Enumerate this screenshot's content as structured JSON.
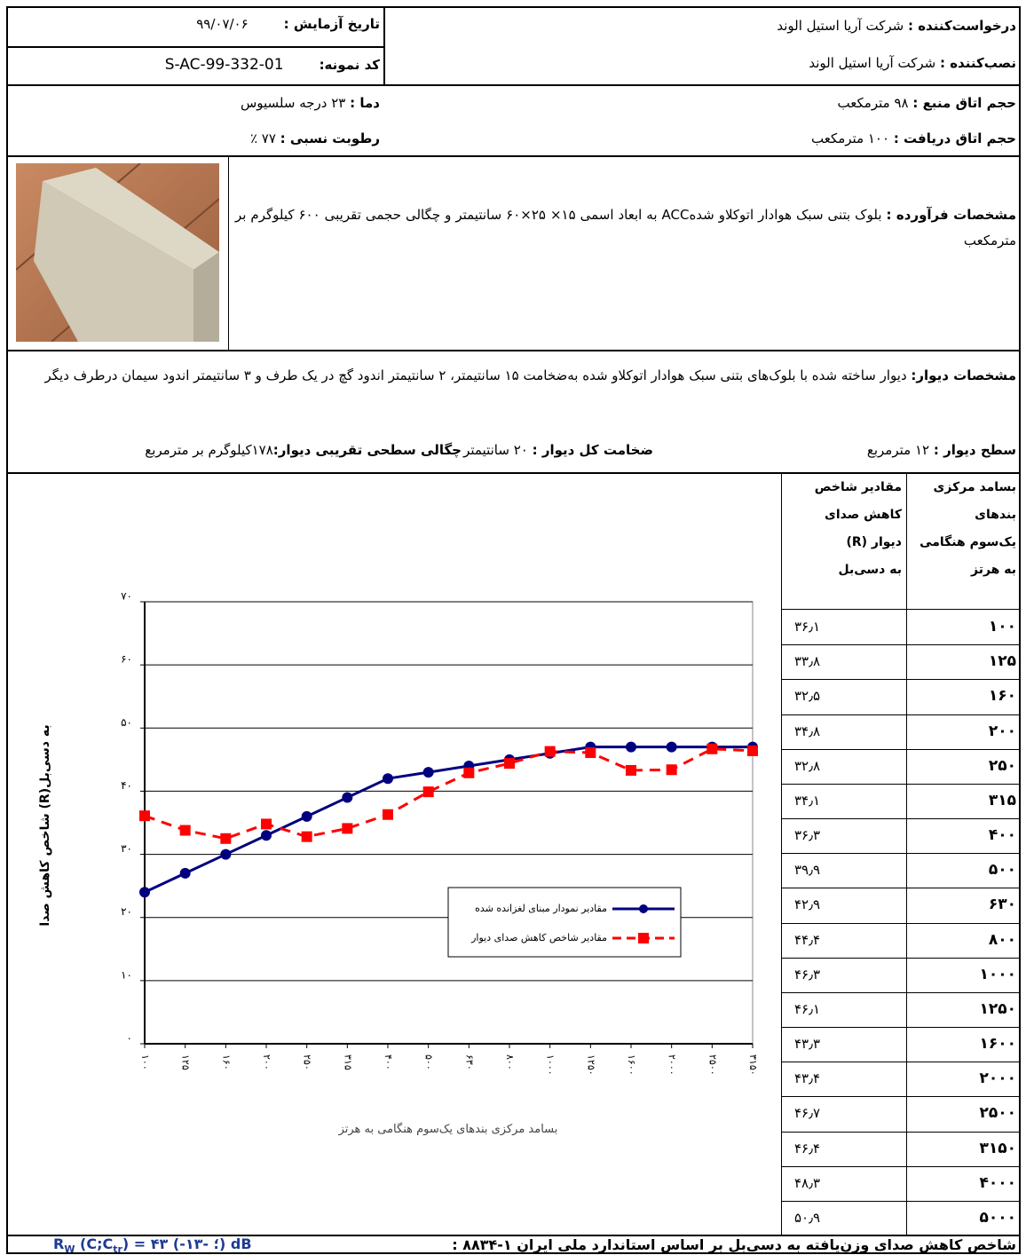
{
  "header": {
    "requester": {
      "label": "درخواست‌کننده :",
      "value": "شرکت آریا استیل الوند"
    },
    "installer": {
      "label": "نصب‌کننده :",
      "value": "شرکت آریا استیل الوند"
    },
    "test_date": {
      "label": "تاریخ آزمایش :",
      "value": "۹۹/۰۷/۰۶"
    },
    "sample_code": {
      "label": "کد نمونه:",
      "value": "S-AC-99-332-01"
    }
  },
  "conditions": {
    "source_room": {
      "label": "حجم اتاق منبع :",
      "value": "۹۸ مترمکعب"
    },
    "receiving_room": {
      "label": "حجم اتاق دریافت :",
      "value": "۱۰۰ مترمکعب"
    },
    "temperature": {
      "label": "دما :",
      "value": "۲۳ درجه سلسیوس"
    },
    "humidity": {
      "label": "رطوبت نسبی :",
      "value": "۷۷ ٪"
    }
  },
  "product": {
    "label": "مشخصات فرآورده :",
    "text": "بلوک بتنی سبک هوادار اتوکلاو شدهACC  به ابعاد اسمی ۱۵× ۲۵×۶۰ سانتیمتر و چگالی حجمی تقریبی ۶۰۰ کیلوگرم بر مترمکعب"
  },
  "wall": {
    "label": "مشخصات دیوار:",
    "text": "دیوار ساخته شده با بلوک‌های بتنی سبک هوادار اتوکلاو شده به‌ضخامت ۱۵ سانتیمتر، ۲ سانتیمتر اندود گچ در یک طرف و ۳ سانتیمتر اندود سیمان درطرف دیگر",
    "area": {
      "label": "سطح دیوار :",
      "value": "۱۲ مترمربع"
    },
    "thickness": {
      "label": "ضخامت کل دیوار :",
      "value": "۲۰ سانتیمتر"
    },
    "density": {
      "label": "چگالی سطحی تقریبی دیوار:",
      "value": "۱۷۸کیلوگرم بر مترمربع"
    }
  },
  "chart_data": {
    "type": "line",
    "x_label": "بسامد مرکزی بندهای یک‌سوم هنگامی به هرتز",
    "y_label": "شاخص کاهش صدا (R)به دسی‌بل",
    "categories": [
      "۱۰۰",
      "۱۲۵",
      "۱۶۰",
      "۲۰۰",
      "۲۵۰",
      "۳۱۵",
      "۴۰۰",
      "۵۰۰",
      "۶۳۰",
      "۸۰۰",
      "۱۰۰۰",
      "۱۲۵۰",
      "۱۶۰۰",
      "۲۰۰۰",
      "۲۵۰۰",
      "۳۱۵۰"
    ],
    "ylim": [
      0,
      70
    ],
    "yticks": [
      {
        "value": 0,
        "label": "۰"
      },
      {
        "value": 10,
        "label": "۱۰"
      },
      {
        "value": 20,
        "label": "۲۰"
      },
      {
        "value": 30,
        "label": "۳۰"
      },
      {
        "value": 40,
        "label": "۴۰"
      },
      {
        "value": 50,
        "label": "۵۰"
      },
      {
        "value": 60,
        "label": "۶۰"
      },
      {
        "value": 70,
        "label": "۷۰"
      }
    ],
    "grid": true,
    "series": [
      {
        "name": "مقادیر نمودار مبنای لغزانده شده",
        "color": "#00007f",
        "marker": "circle",
        "dashed": false,
        "values": [
          24,
          27,
          30,
          33,
          36,
          39,
          42,
          43,
          44,
          45,
          46,
          47,
          47,
          47,
          47,
          47
        ]
      },
      {
        "name": "مقادیر شاخص کاهش صدای دیوار",
        "color": "#ff0000",
        "marker": "square",
        "dashed": true,
        "values": [
          36.1,
          33.8,
          32.5,
          34.8,
          32.8,
          34.1,
          36.3,
          39.9,
          42.9,
          44.4,
          46.3,
          46.1,
          43.3,
          43.4,
          46.7,
          46.4
        ]
      }
    ]
  },
  "table": {
    "header": [
      [
        "بسامد مرکزی",
        "بندهای",
        "یک‌سوم هنگامی",
        "به هرتز"
      ],
      [
        "مقادیر شاخص",
        "کاهش صدای",
        "دیوار (R)",
        "به دسی‌بل"
      ]
    ],
    "rows": [
      [
        "۱۰۰",
        "۳۶٫۱"
      ],
      [
        "۱۲۵",
        "۳۳٫۸"
      ],
      [
        "۱۶۰",
        "۳۲٫۵"
      ],
      [
        "۲۰۰",
        "۳۴٫۸"
      ],
      [
        "۲۵۰",
        "۳۲٫۸"
      ],
      [
        "۳۱۵",
        "۳۴٫۱"
      ],
      [
        "۴۰۰",
        "۳۶٫۳"
      ],
      [
        "۵۰۰",
        "۳۹٫۹"
      ],
      [
        "۶۳۰",
        "۴۲٫۹"
      ],
      [
        "۸۰۰",
        "۴۴٫۴"
      ],
      [
        "۱۰۰۰",
        "۴۶٫۳"
      ],
      [
        "۱۲۵۰",
        "۴۶٫۱"
      ],
      [
        "۱۶۰۰",
        "۴۳٫۳"
      ],
      [
        "۲۰۰۰",
        "۴۳٫۴"
      ],
      [
        "۲۵۰۰",
        "۴۶٫۷"
      ],
      [
        "۳۱۵۰",
        "۴۶٫۴"
      ],
      [
        "۴۰۰۰",
        "۴۸٫۳"
      ],
      [
        "۵۰۰۰",
        "۵۰٫۹"
      ]
    ]
  },
  "footer": {
    "label": "شاخص کاهش صدای وزن‌یافته به دسی‌بل بر اساس استاندارد ملی ایران ۱-۸۸۳۴ :",
    "formula": [
      "R",
      "W",
      " (C;C",
      "tr",
      ") = ۴۳ (-۱؛ -۳)  dB"
    ]
  }
}
